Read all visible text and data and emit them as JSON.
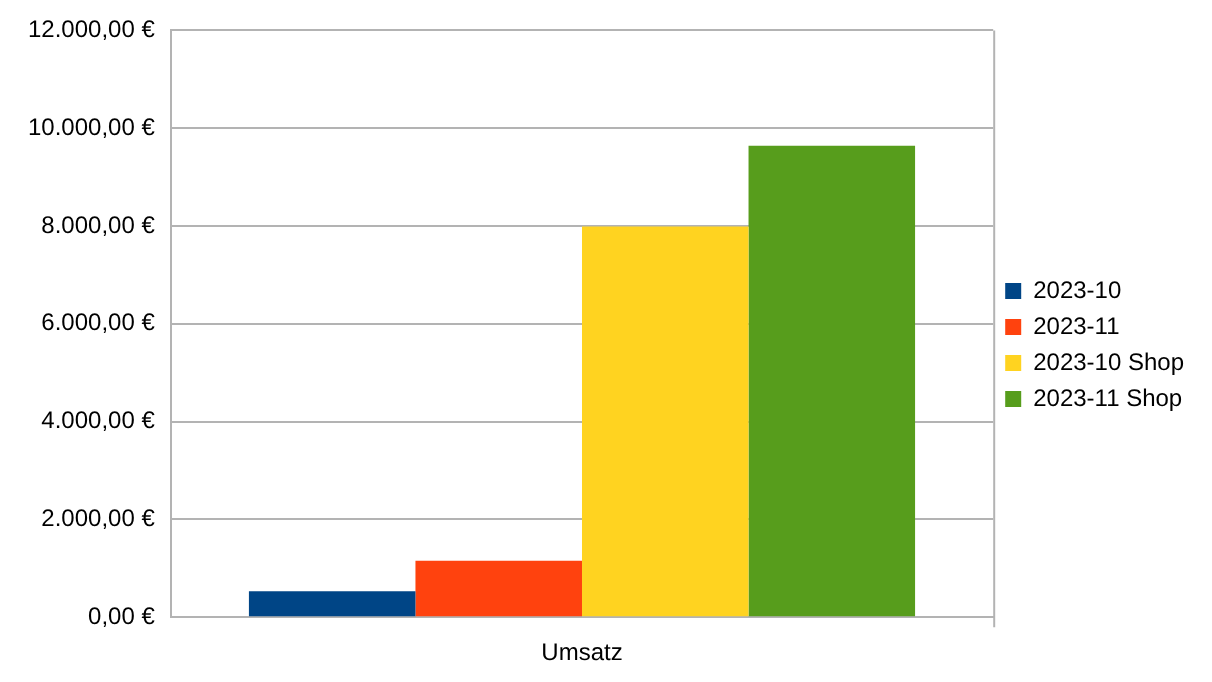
{
  "chart_data": {
    "type": "bar",
    "categories": [
      "Umsatz"
    ],
    "series": [
      {
        "name": "2023-10",
        "color": "#004586",
        "values": [
          530
        ]
      },
      {
        "name": "2023-11",
        "color": "#ff420e",
        "values": [
          1155
        ]
      },
      {
        "name": "2023-10 Shop",
        "color": "#ffd320",
        "values": [
          7990
        ]
      },
      {
        "name": "2023-11 Shop",
        "color": "#579d1c",
        "values": [
          9640
        ]
      }
    ],
    "ylim": [
      0,
      12000
    ],
    "yticks": [
      {
        "value": 0,
        "label": "0,00 €"
      },
      {
        "value": 2000,
        "label": "2.000,00 €"
      },
      {
        "value": 4000,
        "label": "4.000,00 €"
      },
      {
        "value": 6000,
        "label": "6.000,00 €"
      },
      {
        "value": 8000,
        "label": "8.000,00 €"
      },
      {
        "value": 10000,
        "label": "10.000,00 €"
      },
      {
        "value": 12000,
        "label": "12.000,00 €"
      }
    ],
    "grid": "y",
    "legend": "right"
  }
}
